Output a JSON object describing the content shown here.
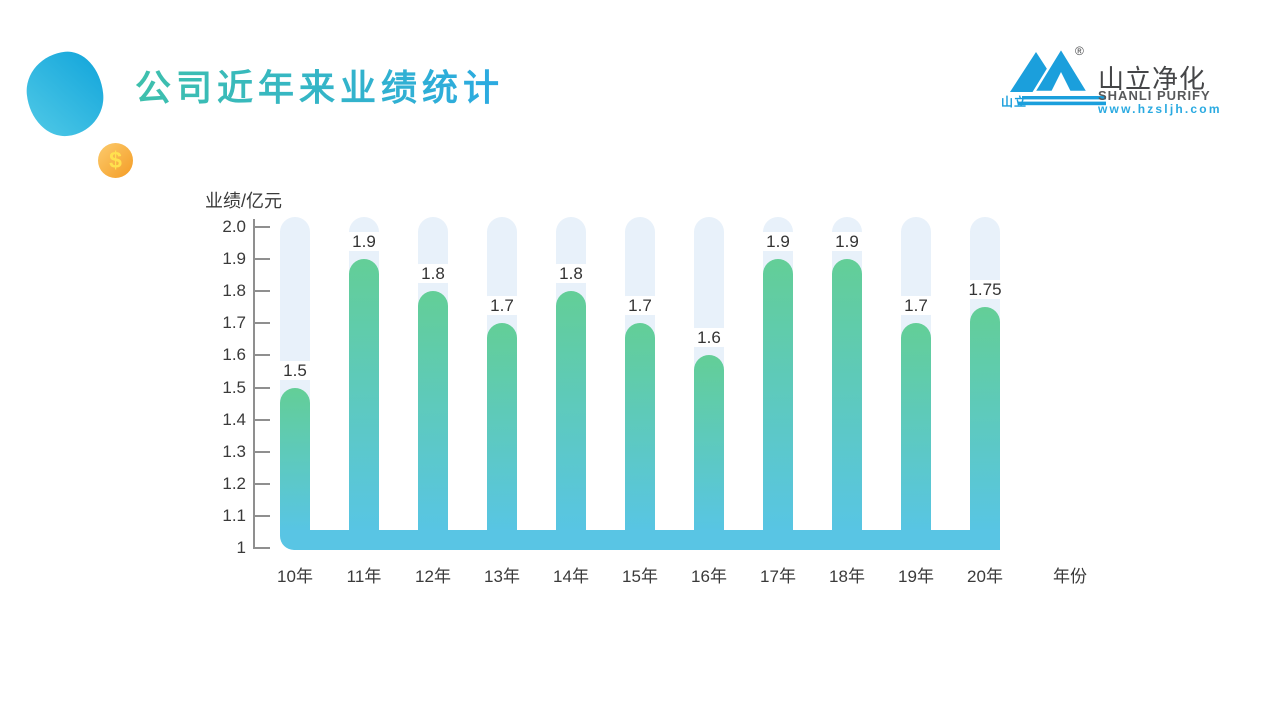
{
  "header": {
    "title": "公司近年来业绩统计",
    "title_gradient": [
      "#3EC0AC",
      "#2BAAE2"
    ]
  },
  "decor": {
    "coin_symbol": "$",
    "coin_colors": [
      "#FCCB6D",
      "#F49C25"
    ],
    "blob_colors": [
      "#14A6DB",
      "#4EC8E6"
    ]
  },
  "logo": {
    "mark_text": "山立",
    "registered_mark": "®",
    "name_cn": "山立净化",
    "name_en": "SHANLI PURIFY",
    "website": "www.hzsljh.com",
    "brand_blue": "#1B9FDC",
    "text_gray": "#58595B"
  },
  "chart_data": {
    "type": "bar",
    "title": "公司近年来业绩统计",
    "ylabel": "业绩/亿元",
    "xlabel": "年份",
    "categories": [
      "10年",
      "11年",
      "12年",
      "13年",
      "14年",
      "15年",
      "16年",
      "17年",
      "18年",
      "19年",
      "20年"
    ],
    "values": [
      1.5,
      1.9,
      1.8,
      1.7,
      1.8,
      1.7,
      1.6,
      1.9,
      1.9,
      1.7,
      1.75
    ],
    "value_labels": [
      "1.5",
      "1.9",
      "1.8",
      "1.7",
      "1.8",
      "1.7",
      "1.6",
      "1.9",
      "1.9",
      "1.7",
      "1.75"
    ],
    "ylim": [
      1,
      2
    ],
    "ytick_labels": [
      "2.0",
      "1.9",
      "1.8",
      "1.7",
      "1.6",
      "1.5",
      "1.4",
      "1.3",
      "1.2",
      "1.1",
      "1"
    ],
    "grid": false,
    "legend": false,
    "colors": {
      "bar_top": "#63CE97",
      "bar_bottom": "#58C5E4",
      "track": "#E8F1FA",
      "base_band": "#59C5E4",
      "axis": "#8F8F8F",
      "text": "#3A3A3A"
    }
  }
}
